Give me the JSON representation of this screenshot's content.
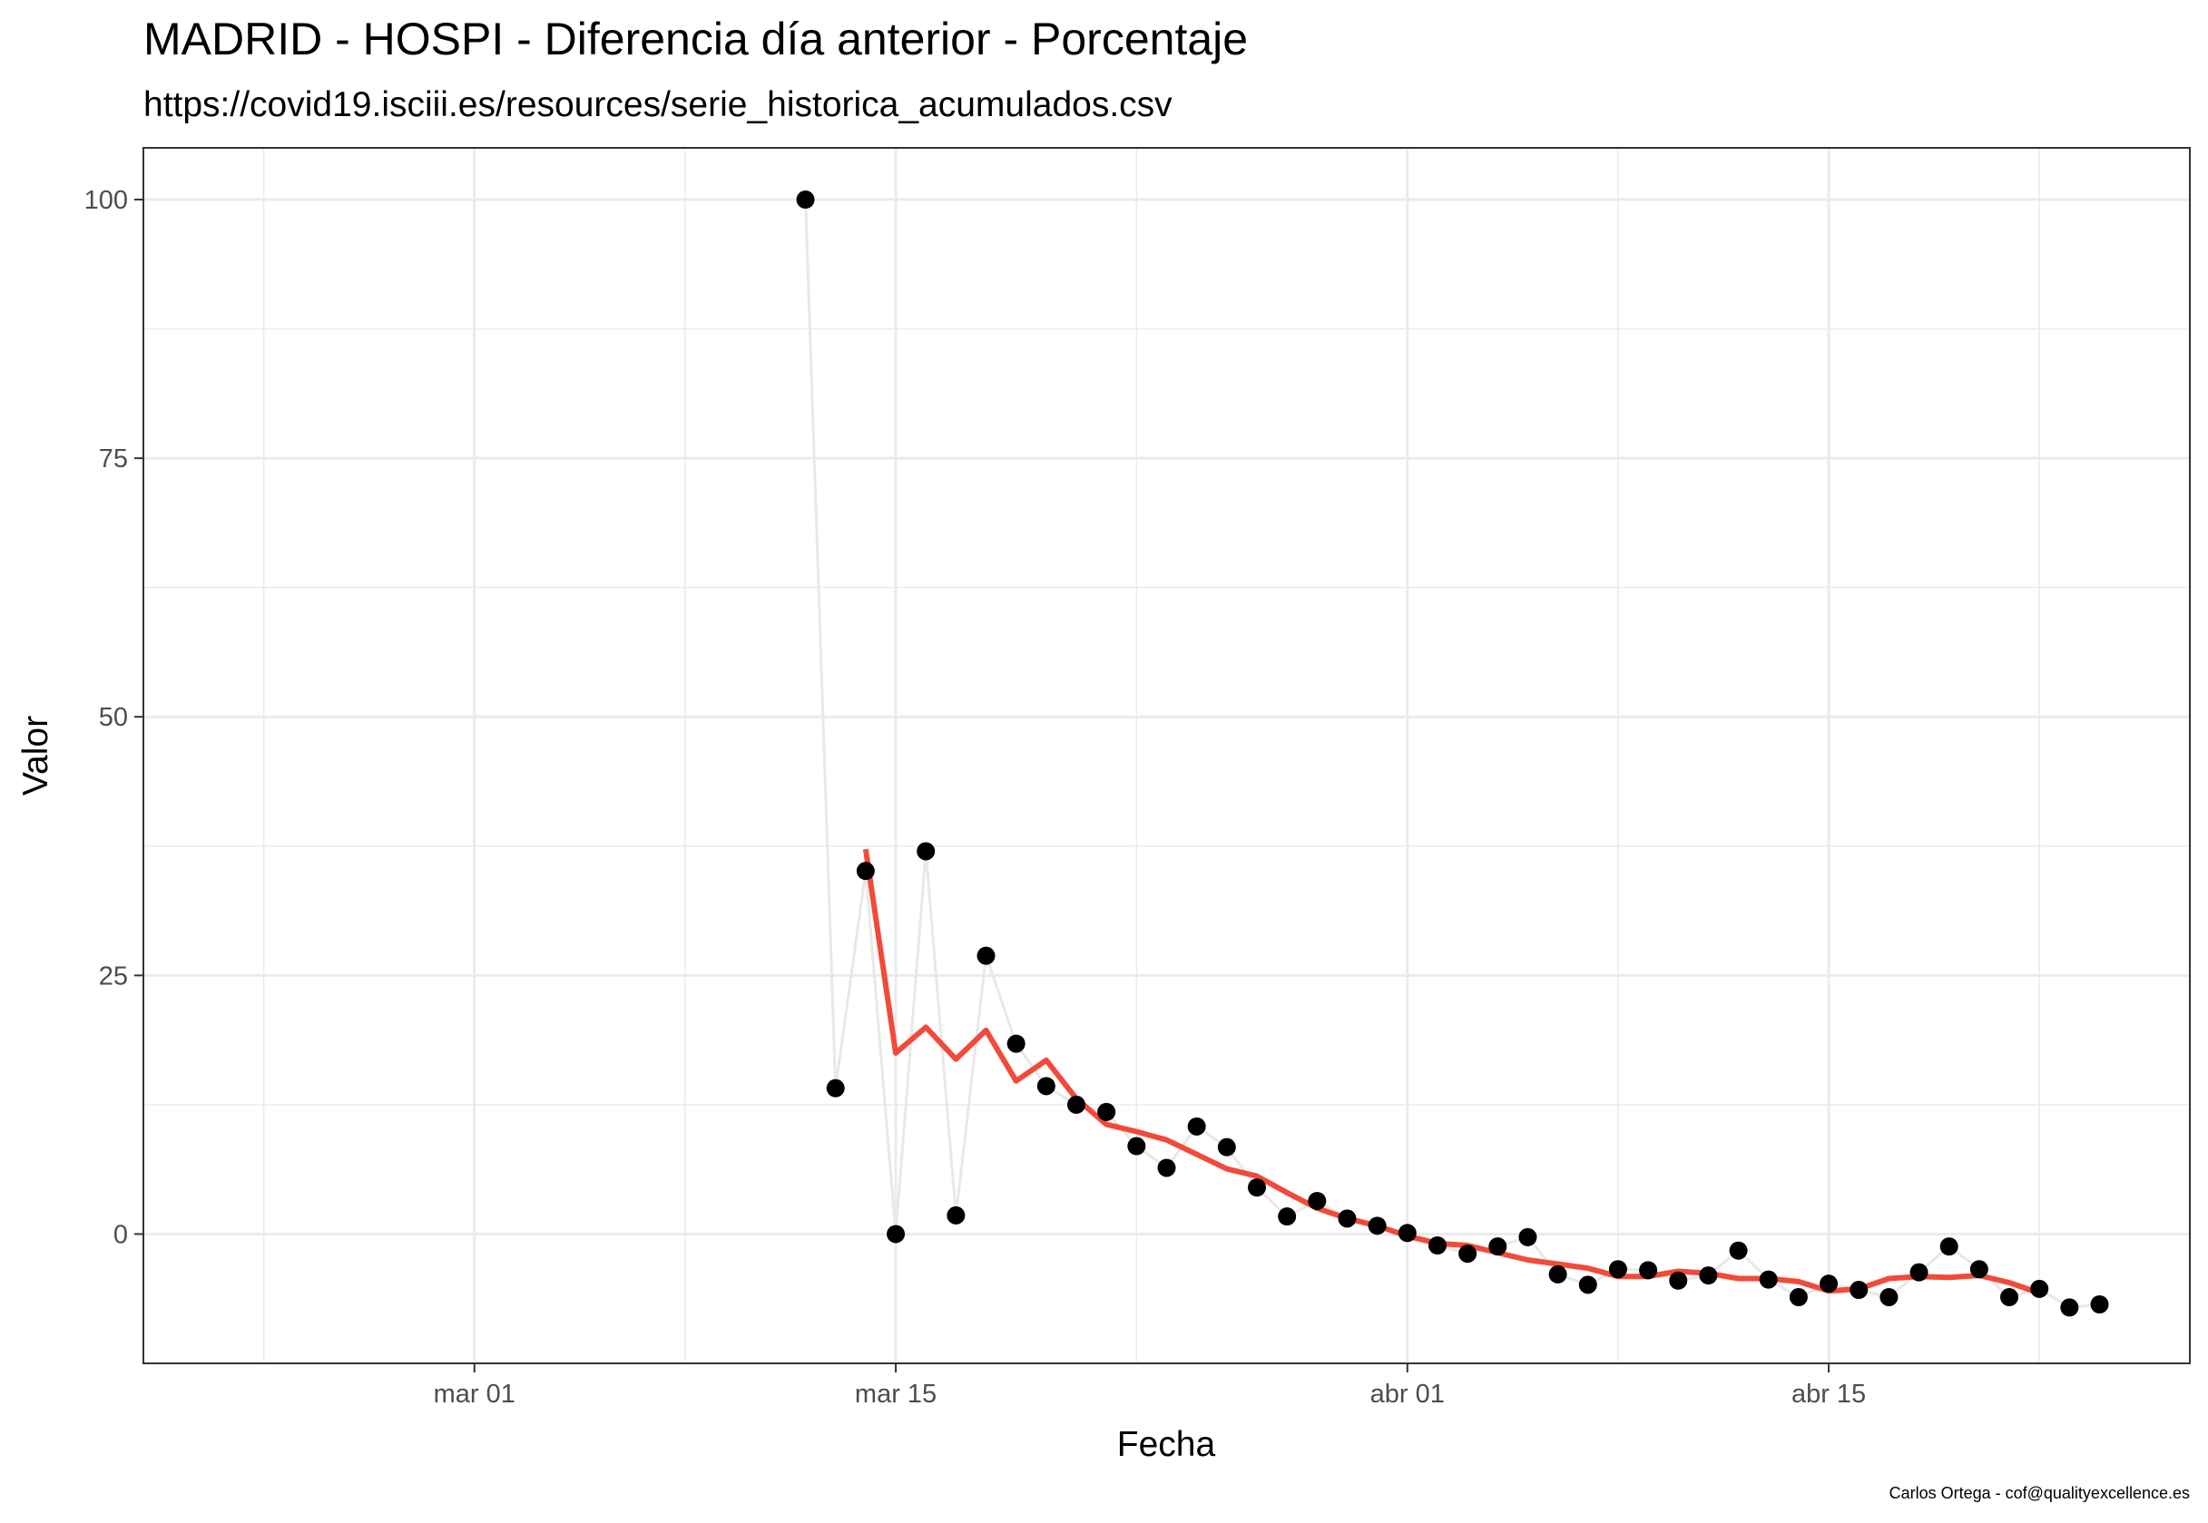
{
  "chart_data": {
    "type": "scatter",
    "title": "MADRID - HOSPI - Diferencia día anterior - Porcentaje",
    "subtitle": "https://covid19.isciii.es/resources/serie_historica_acumulados.csv",
    "caption": "Carlos Ortega - cof@qualityexcellence.es",
    "xlabel": "Fecha",
    "ylabel": "Valor",
    "xlim": [
      "2020-02-19",
      "2020-04-27"
    ],
    "ylim": [
      -12.5,
      105
    ],
    "x_ticks": [
      {
        "date": "2020-03-01",
        "label": "mar 01"
      },
      {
        "date": "2020-03-15",
        "label": "mar 15"
      },
      {
        "date": "2020-04-01",
        "label": "abr 01"
      },
      {
        "date": "2020-04-15",
        "label": "abr 15"
      }
    ],
    "x_minor_ticks": [
      "2020-02-23",
      "2020-03-08",
      "2020-03-23",
      "2020-04-08",
      "2020-04-22"
    ],
    "y_ticks": [
      0,
      25,
      50,
      75,
      100
    ],
    "y_minor_ticks": [
      -12.5,
      12.5,
      37.5,
      62.5,
      87.5
    ],
    "grid": true,
    "colors": {
      "points": "#000000",
      "connector": "#e8e8e8",
      "smooth": "#f24a3a",
      "grid": "#ebebeb",
      "panel_border": "#333333"
    },
    "series": [
      {
        "type": "scatter",
        "x": [
          "2020-03-12",
          "2020-03-13",
          "2020-03-14",
          "2020-03-15",
          "2020-03-16",
          "2020-03-17",
          "2020-03-18",
          "2020-03-19",
          "2020-03-20",
          "2020-03-21",
          "2020-03-22",
          "2020-03-23",
          "2020-03-24",
          "2020-03-25",
          "2020-03-26",
          "2020-03-27",
          "2020-03-28",
          "2020-03-29",
          "2020-03-30",
          "2020-03-31",
          "2020-04-01",
          "2020-04-02",
          "2020-04-03",
          "2020-04-04",
          "2020-04-05",
          "2020-04-06",
          "2020-04-07",
          "2020-04-08",
          "2020-04-09",
          "2020-04-10",
          "2020-04-11",
          "2020-04-12",
          "2020-04-13",
          "2020-04-14",
          "2020-04-15",
          "2020-04-16",
          "2020-04-17",
          "2020-04-18",
          "2020-04-19",
          "2020-04-20",
          "2020-04-21",
          "2020-04-22",
          "2020-04-23",
          "2020-04-24"
        ],
        "y": [
          100,
          14.1,
          35.1,
          0,
          37,
          1.8,
          26.9,
          18.4,
          14.3,
          12.5,
          11.8,
          8.5,
          6.4,
          10.4,
          8.4,
          4.5,
          1.7,
          3.2,
          1.5,
          0.8,
          0.1,
          -1.1,
          -1.9,
          -1.2,
          -0.3,
          -3.9,
          -4.9,
          -3.4,
          -3.5,
          -4.5,
          -4,
          -1.6,
          -4.4,
          -6.1,
          -4.8,
          -5.4,
          -6.1,
          -3.7,
          -1.2,
          -3.4,
          -6.1,
          -5.3,
          -7.1,
          -6.8
        ]
      },
      {
        "type": "line",
        "x": [
          "2020-03-14",
          "2020-03-15",
          "2020-03-16",
          "2020-03-17",
          "2020-03-18",
          "2020-03-19",
          "2020-03-20",
          "2020-03-21",
          "2020-03-22",
          "2020-03-23",
          "2020-03-24",
          "2020-03-25",
          "2020-03-26",
          "2020-03-27",
          "2020-03-28",
          "2020-03-29",
          "2020-03-30",
          "2020-03-31",
          "2020-04-01",
          "2020-04-02",
          "2020-04-03",
          "2020-04-04",
          "2020-04-05",
          "2020-04-06",
          "2020-04-07",
          "2020-04-08",
          "2020-04-09",
          "2020-04-10",
          "2020-04-11",
          "2020-04-12",
          "2020-04-13",
          "2020-04-14",
          "2020-04-15",
          "2020-04-16",
          "2020-04-17",
          "2020-04-18",
          "2020-04-19",
          "2020-04-20",
          "2020-04-21",
          "2020-04-22"
        ],
        "y": [
          37.2,
          17.5,
          20,
          16.9,
          19.7,
          14.8,
          16.8,
          13.1,
          10.6,
          9.9,
          9.1,
          7.7,
          6.3,
          5.6,
          4,
          2.5,
          1.5,
          0.8,
          -0.2,
          -0.9,
          -1.1,
          -1.8,
          -2.5,
          -2.9,
          -3.3,
          -4.1,
          -4.1,
          -3.6,
          -3.8,
          -4.3,
          -4.3,
          -4.6,
          -5.5,
          -5.3,
          -4.3,
          -4.1,
          -4.2,
          -4,
          -4.7,
          -5.7
        ]
      }
    ]
  }
}
